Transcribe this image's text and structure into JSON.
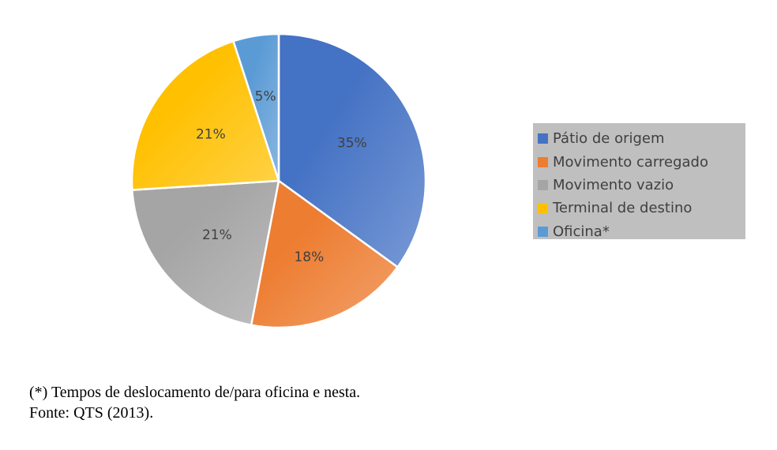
{
  "chart_data": {
    "type": "pie",
    "slices": [
      {
        "label": "Pátio de origem",
        "value": 35,
        "display": "35%",
        "color": "#4472c4"
      },
      {
        "label": "Movimento carregado",
        "value": 18,
        "display": "18%",
        "color": "#ed7d31"
      },
      {
        "label": "Movimento vazio",
        "value": 21,
        "display": "21%",
        "color": "#a5a5a5"
      },
      {
        "label": "Terminal de destino",
        "value": 21,
        "display": "21%",
        "color": "#ffc000"
      },
      {
        "label": "Oficina*",
        "value": 5,
        "display": "5%",
        "color": "#5b9bd5"
      }
    ],
    "start_angle_deg": 0,
    "direction": "clockwise",
    "legend_position": "right"
  },
  "caption": {
    "note": "(*) Tempos de deslocamento de/para oficina e nesta.",
    "source": "Fonte: QTS (2013)."
  }
}
